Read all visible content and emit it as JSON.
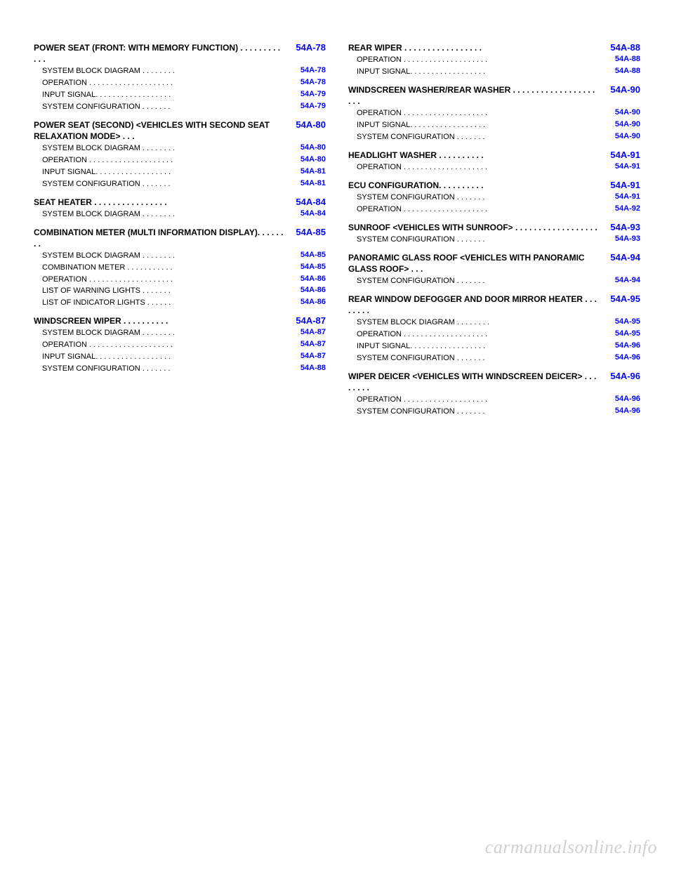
{
  "link_color": "#0000ff",
  "watermark": "carmanualsonline.info",
  "left_col": [
    {
      "type": "entry",
      "text": "POWER SEAT (FRONT: WITH MEMORY FUNCTION) . . . . . . . . . . . .",
      "ref": "54A-78",
      "bold": true
    },
    {
      "type": "entry",
      "text": "SYSTEM BLOCK DIAGRAM . . . . . . . .",
      "ref": "54A-78",
      "sub": true
    },
    {
      "type": "entry",
      "text": "OPERATION  . . . . . . . . . . . . . . . . . . . .",
      "ref": "54A-78",
      "sub": true
    },
    {
      "type": "entry",
      "text": "INPUT SIGNAL. . . . . . . . . . . . . . . . . .",
      "ref": "54A-79",
      "sub": true
    },
    {
      "type": "entry",
      "text": "SYSTEM CONFIGURATION . . . . . . .",
      "ref": "54A-79",
      "sub": true
    },
    {
      "type": "spacer"
    },
    {
      "type": "entry",
      "text": "POWER SEAT (SECOND) <VEHICLES WITH SECOND SEAT RELAXATION MODE> . . .",
      "ref": "54A-80",
      "bold": true
    },
    {
      "type": "entry",
      "text": "SYSTEM BLOCK DIAGRAM . . . . . . . .",
      "ref": "54A-80",
      "sub": true
    },
    {
      "type": "entry",
      "text": "OPERATION  . . . . . . . . . . . . . . . . . . . .",
      "ref": "54A-80",
      "sub": true
    },
    {
      "type": "entry",
      "text": "INPUT SIGNAL. . . . . . . . . . . . . . . . . .",
      "ref": "54A-81",
      "sub": true
    },
    {
      "type": "entry",
      "text": "SYSTEM CONFIGURATION . . . . . . .",
      "ref": "54A-81",
      "sub": true
    },
    {
      "type": "spacer"
    },
    {
      "type": "entry",
      "text": "SEAT HEATER  . . . . . . . . . . . . . . . .",
      "ref": "54A-84",
      "bold": true
    },
    {
      "type": "entry",
      "text": "SYSTEM BLOCK DIAGRAM . . . . . . . .",
      "ref": "54A-84",
      "sub": true
    },
    {
      "type": "spacer"
    },
    {
      "type": "entry",
      "text": "COMBINATION METER (MULTI INFORMATION DISPLAY). . . . . . . .",
      "ref": "54A-85",
      "bold": true
    },
    {
      "type": "entry",
      "text": "SYSTEM BLOCK DIAGRAM . . . . . . . .",
      "ref": "54A-85",
      "sub": true
    },
    {
      "type": "entry",
      "text": "COMBINATION METER . . . . . . . . . . .",
      "ref": "54A-85",
      "sub": true
    },
    {
      "type": "entry",
      "text": "OPERATION  . . . . . . . . . . . . . . . . . . . .",
      "ref": "54A-86",
      "sub": true
    },
    {
      "type": "entry",
      "text": "LIST OF WARNING LIGHTS . . . . . . .",
      "ref": "54A-86",
      "sub": true
    },
    {
      "type": "entry",
      "text": "LIST OF INDICATOR LIGHTS . . . . . .",
      "ref": "54A-86",
      "sub": true
    },
    {
      "type": "spacer"
    },
    {
      "type": "entry",
      "text": "WINDSCREEN WIPER . . . . . . . . . .",
      "ref": "54A-87",
      "bold": true
    },
    {
      "type": "entry",
      "text": "SYSTEM BLOCK DIAGRAM . . . . . . . .",
      "ref": "54A-87",
      "sub": true
    },
    {
      "type": "entry",
      "text": "OPERATION  . . . . . . . . . . . . . . . . . . . .",
      "ref": "54A-87",
      "sub": true
    },
    {
      "type": "entry",
      "text": "INPUT SIGNAL. . . . . . . . . . . . . . . . . .",
      "ref": "54A-87",
      "sub": true
    },
    {
      "type": "entry",
      "text": "SYSTEM CONFIGURATION . . . . . . .",
      "ref": "54A-88",
      "sub": true
    }
  ],
  "right_col": [
    {
      "type": "entry",
      "text": "REAR WIPER . . . . . . . . . . . . . . . . .",
      "ref": "54A-88",
      "bold": true
    },
    {
      "type": "entry",
      "text": "OPERATION  . . . . . . . . . . . . . . . . . . . .",
      "ref": "54A-88",
      "sub": true
    },
    {
      "type": "entry",
      "text": "INPUT SIGNAL. . . . . . . . . . . . . . . . . .",
      "ref": "54A-88",
      "sub": true
    },
    {
      "type": "spacer"
    },
    {
      "type": "entry",
      "text": "WINDSCREEN WASHER/REAR WASHER . . . . . . . . . . . . . . . . . . . . .",
      "ref": "54A-90",
      "bold": true
    },
    {
      "type": "entry",
      "text": "OPERATION  . . . . . . . . . . . . . . . . . . . .",
      "ref": "54A-90",
      "sub": true
    },
    {
      "type": "entry",
      "text": "INPUT SIGNAL. . . . . . . . . . . . . . . . . .",
      "ref": "54A-90",
      "sub": true
    },
    {
      "type": "entry",
      "text": "SYSTEM CONFIGURATION . . . . . . .",
      "ref": "54A-90",
      "sub": true
    },
    {
      "type": "spacer"
    },
    {
      "type": "entry",
      "text": "HEADLIGHT WASHER . . . . . . . . . .",
      "ref": "54A-91",
      "bold": true
    },
    {
      "type": "entry",
      "text": "OPERATION  . . . . . . . . . . . . . . . . . . . .",
      "ref": "54A-91",
      "sub": true
    },
    {
      "type": "spacer"
    },
    {
      "type": "entry",
      "text": "ECU CONFIGURATION. . . . . . . . . .",
      "ref": "54A-91",
      "bold": true
    },
    {
      "type": "entry",
      "text": "SYSTEM CONFIGURATION . . . . . . .",
      "ref": "54A-91",
      "sub": true
    },
    {
      "type": "entry",
      "text": "OPERATION  . . . . . . . . . . . . . . . . . . . .",
      "ref": "54A-92",
      "sub": true
    },
    {
      "type": "spacer"
    },
    {
      "type": "entry",
      "text": "SUNROOF <VEHICLES WITH SUNROOF> . . . . . . . . . . . . . . . . . .",
      "ref": "54A-93",
      "bold": true
    },
    {
      "type": "entry",
      "text": "SYSTEM CONFIGURATION . . . . . . .",
      "ref": "54A-93",
      "sub": true
    },
    {
      "type": "spacer"
    },
    {
      "type": "entry",
      "text": "PANORAMIC GLASS ROOF <VEHICLES WITH PANORAMIC GLASS ROOF> . . .",
      "ref": "54A-94",
      "bold": true
    },
    {
      "type": "entry",
      "text": "SYSTEM CONFIGURATION . . . . . . .",
      "ref": "54A-94",
      "sub": true
    },
    {
      "type": "spacer"
    },
    {
      "type": "entry",
      "text": "REAR WINDOW DEFOGGER AND DOOR MIRROR HEATER . . . . . . . .",
      "ref": "54A-95",
      "bold": true
    },
    {
      "type": "entry",
      "text": "SYSTEM BLOCK DIAGRAM . . . . . . . .",
      "ref": "54A-95",
      "sub": true
    },
    {
      "type": "entry",
      "text": "OPERATION  . . . . . . . . . . . . . . . . . . . .",
      "ref": "54A-95",
      "sub": true
    },
    {
      "type": "entry",
      "text": "INPUT SIGNAL. . . . . . . . . . . . . . . . . .",
      "ref": "54A-96",
      "sub": true
    },
    {
      "type": "entry",
      "text": "SYSTEM CONFIGURATION . . . . . . .",
      "ref": "54A-96",
      "sub": true
    },
    {
      "type": "spacer"
    },
    {
      "type": "entry",
      "text": "WIPER DEICER <VEHICLES WITH WINDSCREEN DEICER> . . . . . . . .",
      "ref": "54A-96",
      "bold": true
    },
    {
      "type": "entry",
      "text": "OPERATION  . . . . . . . . . . . . . . . . . . . .",
      "ref": "54A-96",
      "sub": true
    },
    {
      "type": "entry",
      "text": "SYSTEM CONFIGURATION . . . . . . .",
      "ref": "54A-96",
      "sub": true
    }
  ]
}
